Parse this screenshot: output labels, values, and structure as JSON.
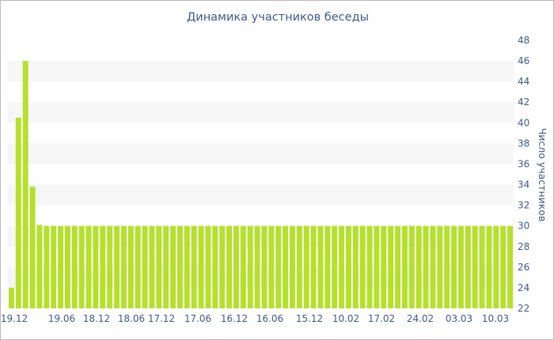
{
  "chart_data": {
    "type": "bar",
    "title": "Динамика участников беседы",
    "ylabel": "Число участников",
    "xlabel": "",
    "ylim": [
      22,
      48
    ],
    "yticks": [
      22,
      24,
      26,
      28,
      30,
      32,
      34,
      36,
      38,
      40,
      42,
      44,
      46,
      48
    ],
    "xtick_labels": [
      "19.12",
      "19.06",
      "18.12",
      "18.06",
      "17.12",
      "17.06",
      "16.12",
      "16.06",
      "15.12",
      "10.02",
      "17.02",
      "24.02",
      "03.03",
      "10.03"
    ],
    "grid": "alternating horizontal bands",
    "bar_color": "#b5e02b",
    "values": [
      24,
      40.5,
      46,
      33.8,
      30.1,
      30,
      30,
      30,
      30,
      30,
      30,
      30,
      30,
      30,
      30,
      30,
      30,
      30,
      30,
      30,
      30,
      30,
      30,
      30,
      30,
      30,
      30,
      30,
      30,
      30,
      30,
      30,
      30,
      30,
      30,
      30,
      30,
      30,
      30,
      30,
      30,
      30,
      30,
      30,
      30,
      30,
      30,
      30,
      30,
      30,
      30,
      30,
      30,
      30,
      30,
      30,
      30,
      30,
      30,
      30,
      30,
      30,
      30,
      30,
      30,
      30,
      30,
      30,
      30,
      30,
      30,
      30
    ]
  }
}
